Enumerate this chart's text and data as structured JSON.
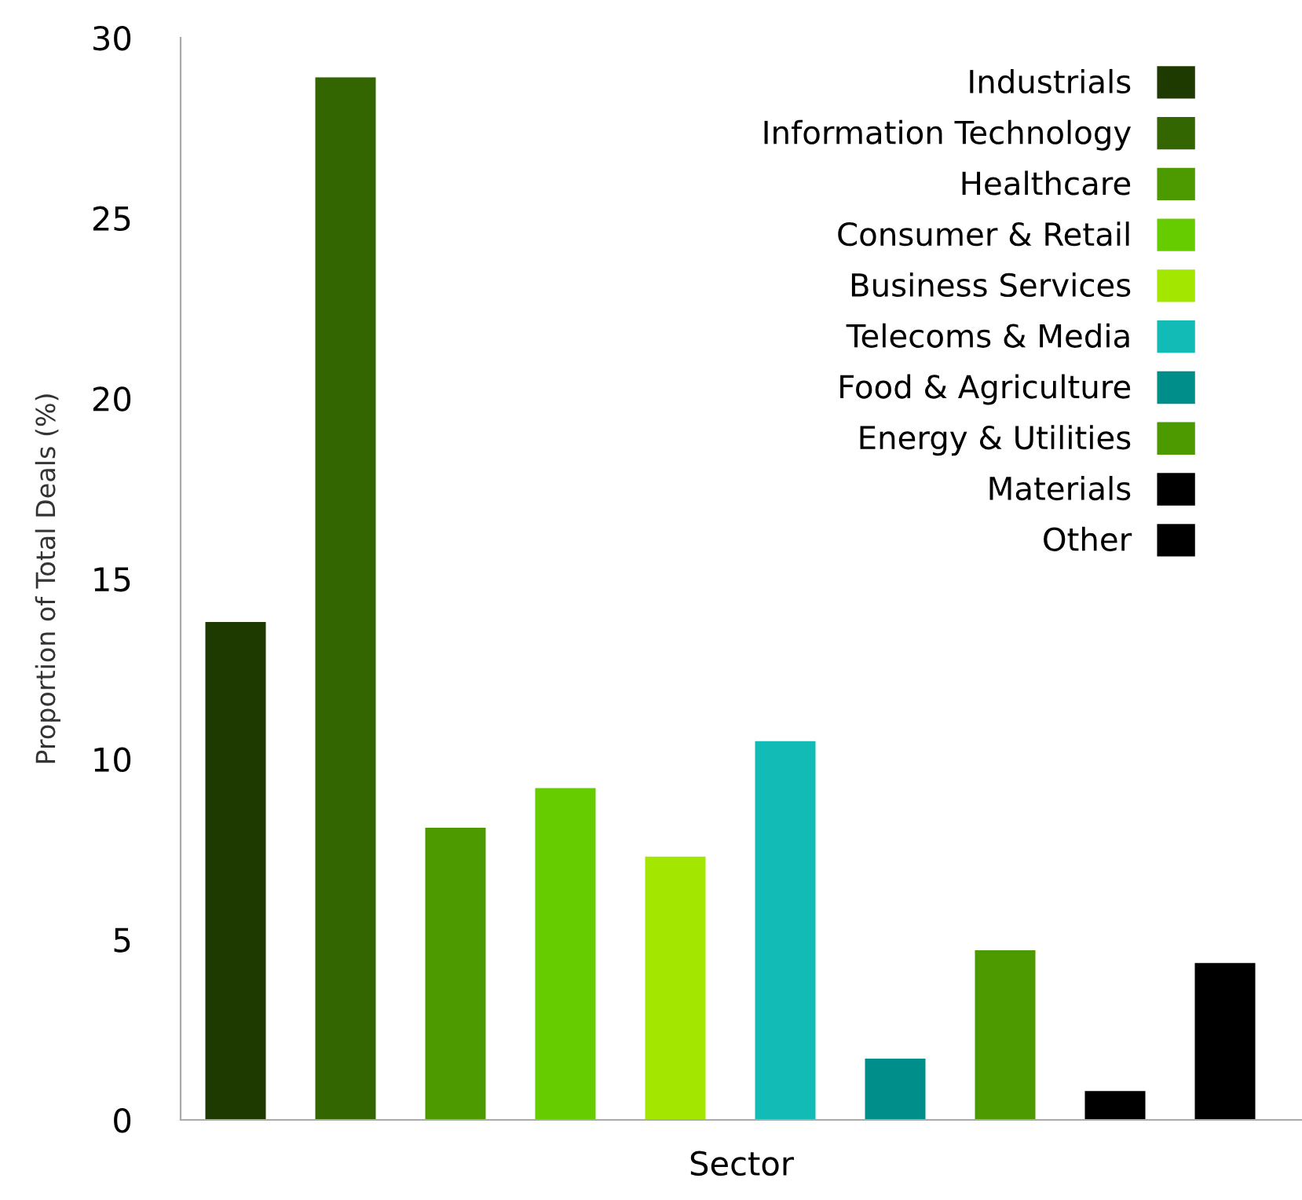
{
  "chart_data": {
    "type": "bar",
    "xlabel": "Sector",
    "ylabel": "Proportion of Total Deals (%)",
    "categories": [
      null,
      null,
      null,
      null,
      null,
      null,
      null,
      null,
      null,
      null
    ],
    "series": [
      {
        "name": "Industrials",
        "color": "#1e3a00",
        "values": [
          13.8,
          null,
          null,
          null,
          null,
          null,
          null,
          null,
          null,
          null
        ]
      },
      {
        "name": "Information Technology",
        "color": "#336600",
        "values": [
          null,
          28.9,
          null,
          null,
          null,
          null,
          null,
          null,
          null,
          null
        ]
      },
      {
        "name": "Healthcare",
        "color": "#4c9900",
        "values": [
          null,
          null,
          8.1,
          null,
          null,
          null,
          null,
          null,
          null,
          null
        ]
      },
      {
        "name": "Consumer & Retail",
        "color": "#66cc00",
        "values": [
          null,
          null,
          null,
          9.2,
          null,
          null,
          null,
          null,
          null,
          null
        ]
      },
      {
        "name": "Business Services",
        "color": "#a3e600",
        "values": [
          null,
          null,
          null,
          null,
          7.3,
          null,
          null,
          null,
          null,
          null
        ]
      },
      {
        "name": "Telecoms & Media",
        "color": "#12bbb5",
        "values": [
          null,
          null,
          null,
          null,
          null,
          10.5,
          null,
          null,
          null,
          null
        ]
      },
      {
        "name": "Food & Agriculture",
        "color": "#008e8a",
        "values": [
          null,
          null,
          null,
          null,
          null,
          null,
          1.7,
          null,
          null,
          null
        ]
      },
      {
        "name": "Energy & Utilities",
        "color": "#4c9900",
        "values": [
          null,
          null,
          null,
          null,
          null,
          null,
          null,
          4.7,
          null,
          null
        ]
      },
      {
        "name": "Materials",
        "color": "#000000",
        "values": [
          null,
          null,
          null,
          null,
          null,
          null,
          null,
          null,
          0.8,
          null
        ]
      },
      {
        "name": "Other",
        "color": "#000000",
        "values": [
          null,
          null,
          null,
          null,
          null,
          null,
          null,
          null,
          null,
          4.35
        ]
      }
    ],
    "ylim": [
      0,
      30
    ],
    "yticks": [
      0,
      5,
      10,
      15,
      20,
      25,
      30
    ],
    "tick_labels": "y",
    "grid": false,
    "legend": "top right"
  }
}
